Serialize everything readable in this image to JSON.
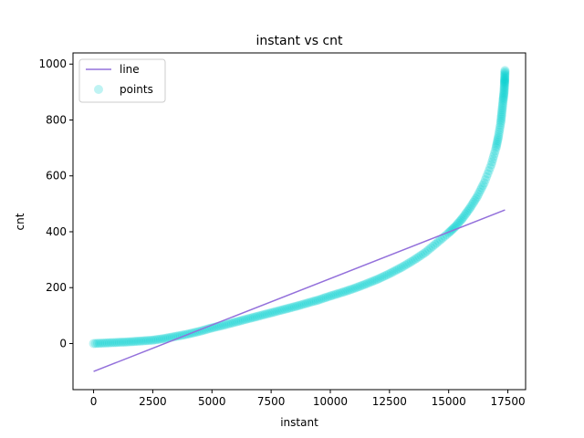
{
  "chart_data": {
    "type": "scatter",
    "title": "instant vs cnt",
    "xlabel": "instant",
    "ylabel": "cnt",
    "xlim": [
      -870,
      18250
    ],
    "ylim": [
      -165,
      1040
    ],
    "x_ticks": [
      0,
      2500,
      5000,
      7500,
      10000,
      12500,
      15000,
      17500
    ],
    "y_ticks": [
      0,
      200,
      400,
      600,
      800,
      1000
    ],
    "legend_position": "upper-left",
    "series": [
      {
        "name": "line",
        "kind": "line",
        "color": "#9370db",
        "points": [
          [
            0,
            -100
          ],
          [
            17379,
            478
          ]
        ]
      },
      {
        "name": "points",
        "kind": "scatter",
        "color": "#00ced1",
        "alpha": 0.25,
        "points": [
          [
            0,
            0
          ],
          [
            500,
            2
          ],
          [
            1000,
            4
          ],
          [
            1500,
            6
          ],
          [
            2000,
            9
          ],
          [
            2500,
            12
          ],
          [
            3000,
            18
          ],
          [
            3500,
            26
          ],
          [
            4000,
            34
          ],
          [
            4500,
            44
          ],
          [
            5000,
            56
          ],
          [
            5500,
            66
          ],
          [
            6000,
            77
          ],
          [
            6500,
            88
          ],
          [
            7000,
            99
          ],
          [
            7500,
            110
          ],
          [
            8000,
            121
          ],
          [
            8500,
            132
          ],
          [
            9000,
            144
          ],
          [
            9500,
            156
          ],
          [
            10000,
            170
          ],
          [
            10500,
            183
          ],
          [
            11000,
            197
          ],
          [
            11500,
            213
          ],
          [
            12000,
            230
          ],
          [
            12500,
            250
          ],
          [
            13000,
            272
          ],
          [
            13500,
            297
          ],
          [
            14000,
            325
          ],
          [
            14500,
            360
          ],
          [
            15000,
            396
          ],
          [
            15300,
            420
          ],
          [
            15600,
            450
          ],
          [
            15900,
            485
          ],
          [
            16200,
            525
          ],
          [
            16500,
            575
          ],
          [
            16800,
            640
          ],
          [
            17000,
            700
          ],
          [
            17100,
            740
          ],
          [
            17200,
            790
          ],
          [
            17250,
            830
          ],
          [
            17300,
            870
          ],
          [
            17340,
            900
          ],
          [
            17360,
            930
          ],
          [
            17370,
            950
          ],
          [
            17379,
            977
          ]
        ]
      }
    ]
  }
}
